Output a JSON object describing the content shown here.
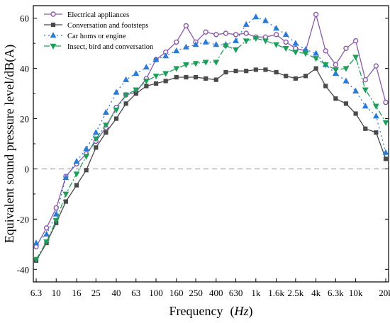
{
  "chart_data": {
    "type": "line",
    "title": "",
    "xlabel_main": "Frequency",
    "xlabel_unit": "Hz",
    "ylabel": "Equivalent sound pressure level/dB(A)",
    "x_ticks": [
      "6.3",
      "10",
      "16",
      "25",
      "40",
      "63",
      "100",
      "160",
      "250",
      "400",
      "630",
      "1k",
      "1.6k",
      "2.5k",
      "4k",
      "6.3k",
      "10k",
      "20k"
    ],
    "x_tick_values": [
      6.3,
      10,
      16,
      25,
      40,
      63,
      100,
      160,
      250,
      400,
      630,
      1000,
      1600,
      2500,
      4000,
      6300,
      10000,
      20000
    ],
    "y_ticks": [
      "-40",
      "-20",
      "0",
      "20",
      "40",
      "60"
    ],
    "ylim": [
      -45,
      65
    ],
    "xlim": [
      6.3,
      20000
    ],
    "x_scale": "log",
    "grid": false,
    "legend_position": "top-left",
    "reference_line": {
      "y": 0,
      "style": "dashed",
      "color": "#888888"
    },
    "x": [
      6.3,
      8,
      10,
      12.5,
      16,
      20,
      25,
      31.5,
      40,
      50,
      63,
      80,
      100,
      125,
      160,
      200,
      250,
      315,
      400,
      500,
      630,
      800,
      1000,
      1250,
      1600,
      2000,
      2500,
      3150,
      4000,
      5000,
      6300,
      8000,
      10000,
      12500,
      16000,
      20000
    ],
    "series": [
      {
        "name": "Electrical appliances",
        "color": "#8a5aa8",
        "marker": "circle",
        "line": "solid",
        "values": [
          -31,
          -23.5,
          -15.5,
          -3,
          2,
          6,
          11,
          16.5,
          24.5,
          29.5,
          30.5,
          36,
          43.5,
          46.5,
          50.5,
          57,
          50.5,
          54.5,
          53.5,
          54,
          53.5,
          54,
          52.5,
          52.5,
          53.5,
          50.5,
          48,
          47,
          61.5,
          47,
          41.5,
          48,
          51,
          35.5,
          41,
          26.5
        ]
      },
      {
        "name": "Conversation and footsteps",
        "color": "#4a4a4a",
        "marker": "square",
        "line": "solid",
        "values": [
          -36.5,
          -29.5,
          -21.5,
          -13,
          -6.5,
          -0.5,
          8.5,
          14.5,
          20,
          26,
          30,
          33,
          34,
          35,
          36.5,
          36.5,
          36.5,
          36,
          35.5,
          38.5,
          39,
          39,
          39.5,
          39.5,
          38.5,
          37,
          36,
          37,
          40,
          33,
          28,
          26,
          22,
          16,
          14.5,
          4
        ]
      },
      {
        "name": "Car homs or engine",
        "color": "#2a7ad8",
        "marker": "triangle",
        "line": "dotted",
        "values": [
          -29.5,
          -26,
          -18,
          -3.5,
          3,
          8,
          14.5,
          22.5,
          30.5,
          35.5,
          38,
          40.5,
          43.5,
          45,
          47,
          48.5,
          49.5,
          50.5,
          49.5,
          49.5,
          51,
          57.5,
          60.5,
          59,
          56,
          53.5,
          50,
          47.5,
          46,
          41.5,
          38,
          35,
          31,
          25,
          21,
          6.5
        ]
      },
      {
        "name": "Insect, bird and conversation",
        "color": "#1e9e5a",
        "marker": "triangle-down",
        "line": "dashdot",
        "values": [
          -36,
          -29,
          -20.5,
          -10,
          -2,
          5,
          12,
          17.5,
          23.5,
          29.5,
          31.5,
          35,
          37,
          38,
          40,
          41.5,
          42,
          42.5,
          42.5,
          49,
          47.5,
          51,
          52,
          51,
          49.5,
          48,
          46.5,
          46,
          44,
          41.5,
          39.5,
          40,
          44.5,
          31.5,
          25,
          18.5
        ]
      }
    ]
  }
}
